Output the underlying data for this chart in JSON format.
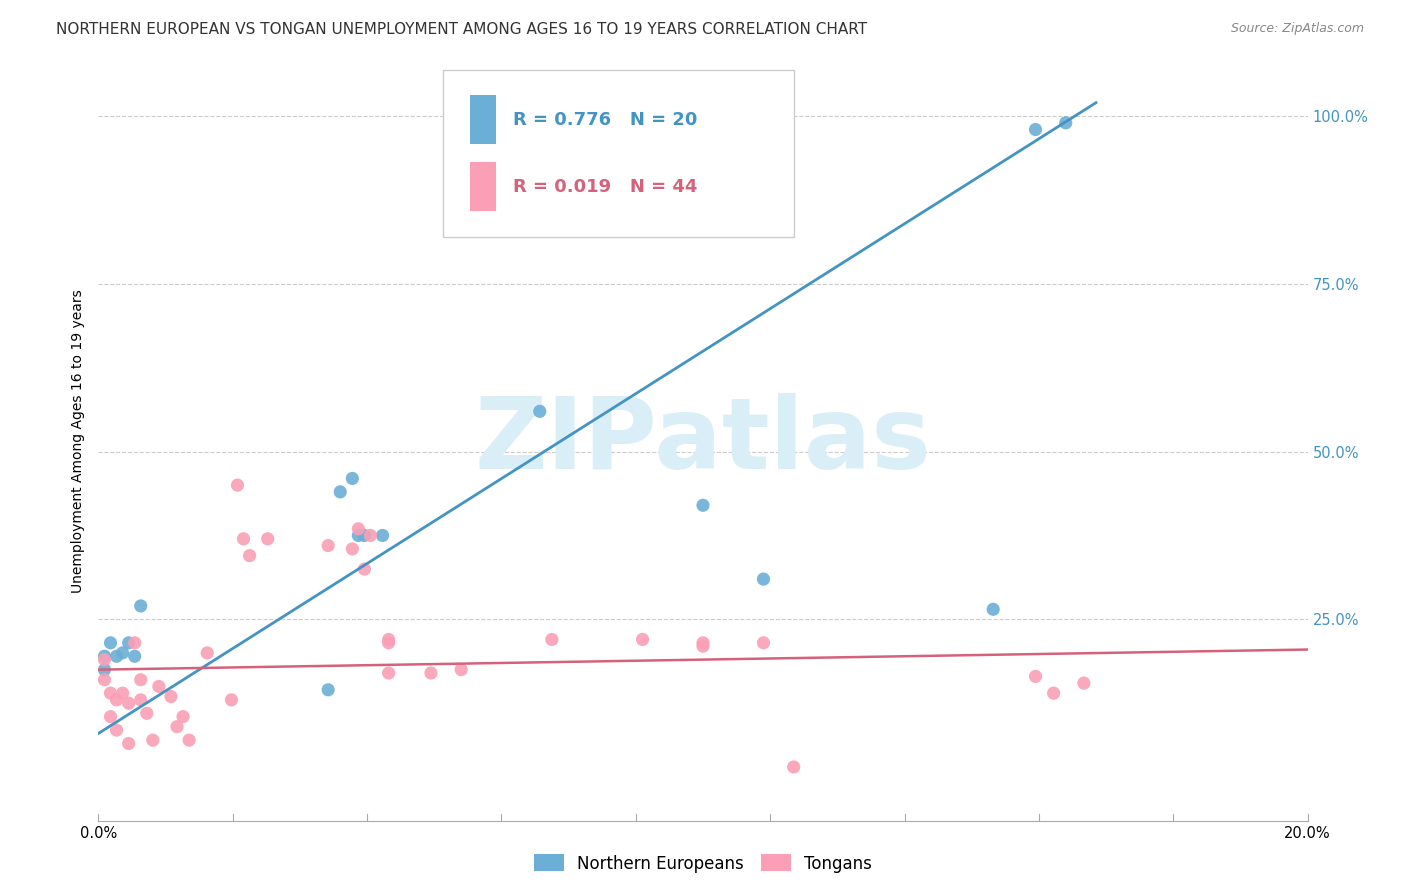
{
  "title": "NORTHERN EUROPEAN VS TONGAN UNEMPLOYMENT AMONG AGES 16 TO 19 YEARS CORRELATION CHART",
  "source": "Source: ZipAtlas.com",
  "ylabel": "Unemployment Among Ages 16 to 19 years",
  "watermark": "ZIPatlas",
  "blue_R": "R = 0.776",
  "blue_N": "N = 20",
  "pink_R": "R = 0.019",
  "pink_N": "N = 44",
  "legend_blue": "Northern Europeans",
  "legend_pink": "Tongans",
  "xlim": [
    0.0,
    0.2
  ],
  "ylim": [
    -0.05,
    1.08
  ],
  "yticks": [
    0.25,
    0.5,
    0.75,
    1.0
  ],
  "ytick_labels": [
    "25.0%",
    "50.0%",
    "75.0%",
    "100.0%"
  ],
  "xtick_vals": [
    0.0,
    0.2
  ],
  "xtick_labels": [
    "0.0%",
    "20.0%"
  ],
  "blue_scatter_x": [
    0.001,
    0.001,
    0.002,
    0.003,
    0.004,
    0.005,
    0.006,
    0.007,
    0.04,
    0.042,
    0.043,
    0.044,
    0.047,
    0.073,
    0.11,
    0.1,
    0.148,
    0.155,
    0.16,
    0.038
  ],
  "blue_scatter_y": [
    0.175,
    0.195,
    0.215,
    0.195,
    0.2,
    0.215,
    0.195,
    0.27,
    0.44,
    0.46,
    0.375,
    0.375,
    0.375,
    0.56,
    0.31,
    0.42,
    0.265,
    0.98,
    0.99,
    0.145
  ],
  "pink_scatter_x": [
    0.001,
    0.001,
    0.002,
    0.002,
    0.003,
    0.003,
    0.004,
    0.005,
    0.005,
    0.006,
    0.007,
    0.007,
    0.008,
    0.009,
    0.01,
    0.012,
    0.013,
    0.014,
    0.015,
    0.018,
    0.022,
    0.023,
    0.024,
    0.025,
    0.028,
    0.038,
    0.042,
    0.043,
    0.044,
    0.045,
    0.048,
    0.048,
    0.048,
    0.055,
    0.06,
    0.075,
    0.09,
    0.1,
    0.1,
    0.11,
    0.115,
    0.155,
    0.158,
    0.163
  ],
  "pink_scatter_y": [
    0.19,
    0.16,
    0.14,
    0.105,
    0.13,
    0.085,
    0.14,
    0.125,
    0.065,
    0.215,
    0.16,
    0.13,
    0.11,
    0.07,
    0.15,
    0.135,
    0.09,
    0.105,
    0.07,
    0.2,
    0.13,
    0.45,
    0.37,
    0.345,
    0.37,
    0.36,
    0.355,
    0.385,
    0.325,
    0.375,
    0.215,
    0.22,
    0.17,
    0.17,
    0.175,
    0.22,
    0.22,
    0.21,
    0.215,
    0.215,
    0.03,
    0.165,
    0.14,
    0.155
  ],
  "blue_line_x": [
    0.0,
    0.165
  ],
  "blue_line_y": [
    0.08,
    1.02
  ],
  "pink_line_x": [
    0.0,
    0.2
  ],
  "pink_line_y": [
    0.175,
    0.205
  ],
  "blue_color": "#6baed6",
  "pink_color": "#fa9fb5",
  "blue_line_color": "#4393c3",
  "pink_line_color": "#d6617b",
  "grid_color": "#cccccc",
  "bg_color": "#ffffff",
  "title_fontsize": 11,
  "source_fontsize": 9,
  "label_fontsize": 10,
  "tick_fontsize": 10.5,
  "scatter_size": 90,
  "watermark_color": "#daeef8",
  "watermark_fontsize": 72
}
